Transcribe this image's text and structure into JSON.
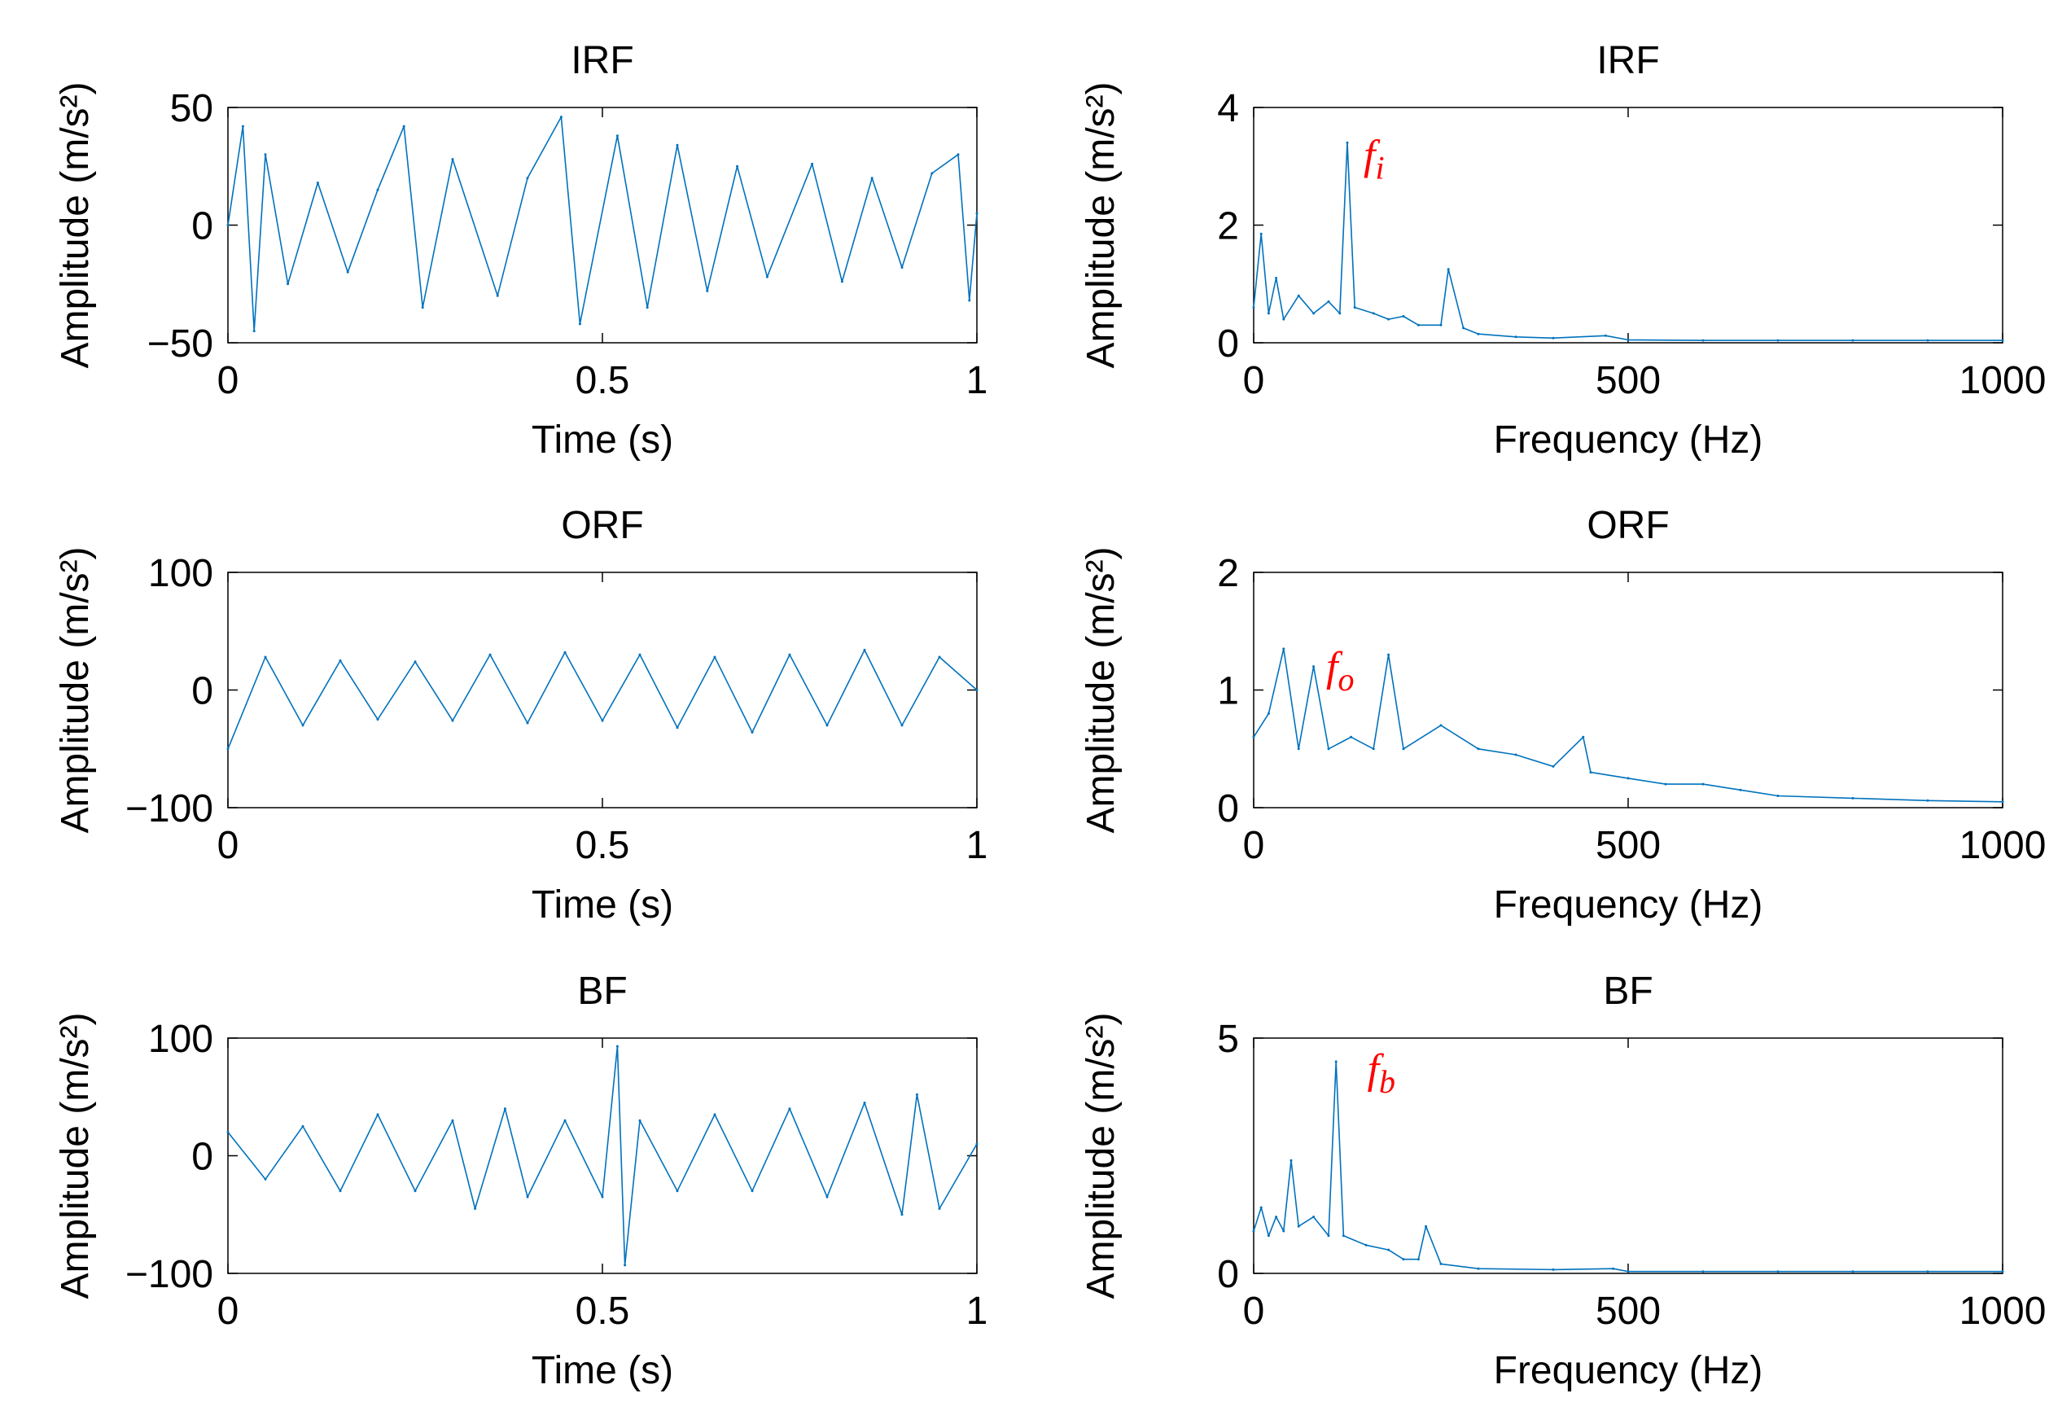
{
  "figure": {
    "colors": {
      "signal": "#0072bd",
      "annotation": "#ff0000",
      "axes": "#000000"
    }
  },
  "chart_data": [
    {
      "type": "line",
      "title": "IRF",
      "xlabel": "Time (s)",
      "ylabel": "Amplitude (m/s²)",
      "xlim": [
        0,
        1
      ],
      "ylim": [
        -50,
        50
      ],
      "xticks": [
        "0",
        "0.5",
        "1"
      ],
      "yticks": [
        "50",
        "0",
        "−50"
      ],
      "xtick_values": [
        0,
        0.5,
        1
      ],
      "ytick_values": [
        50,
        0,
        -50
      ],
      "series": [
        {
          "x": [
            0.0,
            0.02,
            0.035,
            0.05,
            0.08,
            0.12,
            0.16,
            0.2,
            0.235,
            0.26,
            0.3,
            0.36,
            0.4,
            0.445,
            0.47,
            0.52,
            0.56,
            0.6,
            0.64,
            0.68,
            0.72,
            0.78,
            0.82,
            0.86,
            0.9,
            0.94,
            0.975,
            0.99,
            1.0
          ],
          "values": [
            0,
            42,
            -45,
            30,
            -25,
            18,
            -20,
            15,
            42,
            -35,
            28,
            -30,
            20,
            46,
            -42,
            38,
            -35,
            34,
            -28,
            25,
            -22,
            26,
            -24,
            20,
            -18,
            22,
            30,
            -32,
            5
          ]
        }
      ]
    },
    {
      "type": "line",
      "title": "IRF",
      "xlabel": "Frequency (Hz)",
      "ylabel": "Amplitude (m/s²)",
      "xlim": [
        0,
        1000
      ],
      "ylim": [
        0,
        4
      ],
      "xticks": [
        "0",
        "500",
        "1000"
      ],
      "yticks": [
        "4",
        "2",
        "0"
      ],
      "xtick_values": [
        0,
        500,
        1000
      ],
      "ytick_values": [
        4,
        2,
        0
      ],
      "annotations": [
        {
          "text": "f",
          "sub": "i",
          "x": 125,
          "y": 3.4
        }
      ],
      "series": [
        {
          "x": [
            0,
            10,
            20,
            30,
            40,
            60,
            80,
            100,
            115,
            125,
            135,
            160,
            180,
            200,
            220,
            250,
            260,
            280,
            300,
            350,
            400,
            470,
            500,
            600,
            700,
            800,
            900,
            1000
          ],
          "values": [
            0.6,
            1.85,
            0.5,
            1.1,
            0.4,
            0.8,
            0.5,
            0.7,
            0.5,
            3.4,
            0.6,
            0.5,
            0.4,
            0.45,
            0.3,
            0.3,
            1.25,
            0.25,
            0.15,
            0.1,
            0.08,
            0.12,
            0.05,
            0.04,
            0.04,
            0.04,
            0.04,
            0.04
          ]
        }
      ]
    },
    {
      "type": "line",
      "title": "ORF",
      "xlabel": "Time (s)",
      "ylabel": "Amplitude (m/s²)",
      "xlim": [
        0,
        1
      ],
      "ylim": [
        -100,
        100
      ],
      "xticks": [
        "0",
        "0.5",
        "1"
      ],
      "yticks": [
        "100",
        "0",
        "−100"
      ],
      "xtick_values": [
        0,
        0.5,
        1
      ],
      "ytick_values": [
        100,
        0,
        -100
      ],
      "series": [
        {
          "x": [
            0.0,
            0.05,
            0.1,
            0.15,
            0.2,
            0.25,
            0.3,
            0.35,
            0.4,
            0.45,
            0.5,
            0.55,
            0.6,
            0.65,
            0.7,
            0.75,
            0.8,
            0.85,
            0.9,
            0.95,
            1.0
          ],
          "values": [
            -50,
            28,
            -30,
            25,
            -25,
            24,
            -26,
            30,
            -28,
            32,
            -26,
            30,
            -32,
            28,
            -36,
            30,
            -30,
            34,
            -30,
            28,
            0
          ]
        }
      ]
    },
    {
      "type": "line",
      "title": "ORF",
      "xlabel": "Frequency (Hz)",
      "ylabel": "Amplitude (m/s²)",
      "xlim": [
        0,
        1000
      ],
      "ylim": [
        0,
        2
      ],
      "xticks": [
        "0",
        "500",
        "1000"
      ],
      "yticks": [
        "2",
        "1",
        "0"
      ],
      "xtick_values": [
        0,
        500,
        1000
      ],
      "ytick_values": [
        2,
        1,
        0
      ],
      "annotations": [
        {
          "text": "f",
          "sub": "o",
          "x": 75,
          "y": 1.3
        }
      ],
      "series": [
        {
          "x": [
            0,
            20,
            40,
            60,
            80,
            100,
            130,
            160,
            180,
            200,
            250,
            300,
            350,
            400,
            440,
            450,
            500,
            550,
            600,
            650,
            700,
            800,
            900,
            1000
          ],
          "values": [
            0.6,
            0.8,
            1.35,
            0.5,
            1.2,
            0.5,
            0.6,
            0.5,
            1.3,
            0.5,
            0.7,
            0.5,
            0.45,
            0.35,
            0.6,
            0.3,
            0.25,
            0.2,
            0.2,
            0.15,
            0.1,
            0.08,
            0.06,
            0.05
          ]
        }
      ]
    },
    {
      "type": "line",
      "title": "BF",
      "xlabel": "Time (s)",
      "ylabel": "Amplitude (m/s²)",
      "xlim": [
        0,
        1
      ],
      "ylim": [
        -100,
        100
      ],
      "xticks": [
        "0",
        "0.5",
        "1"
      ],
      "yticks": [
        "100",
        "0",
        "−100"
      ],
      "xtick_values": [
        0,
        0.5,
        1
      ],
      "ytick_values": [
        100,
        0,
        -100
      ],
      "series": [
        {
          "x": [
            0.0,
            0.05,
            0.1,
            0.15,
            0.2,
            0.25,
            0.3,
            0.33,
            0.37,
            0.4,
            0.45,
            0.5,
            0.52,
            0.53,
            0.55,
            0.6,
            0.65,
            0.7,
            0.75,
            0.8,
            0.85,
            0.9,
            0.92,
            0.95,
            1.0
          ],
          "values": [
            20,
            -20,
            25,
            -30,
            35,
            -30,
            30,
            -45,
            40,
            -35,
            30,
            -35,
            93,
            -93,
            30,
            -30,
            35,
            -30,
            40,
            -35,
            45,
            -50,
            52,
            -45,
            10
          ]
        }
      ]
    },
    {
      "type": "line",
      "title": "BF",
      "xlabel": "Frequency (Hz)",
      "ylabel": "Amplitude (m/s²)",
      "xlim": [
        0,
        1000
      ],
      "ylim": [
        0,
        5
      ],
      "xticks": [
        "0",
        "500",
        "1000"
      ],
      "yticks": [
        "5",
        "0"
      ],
      "xtick_values": [
        0,
        500,
        1000
      ],
      "ytick_values": [
        5,
        0
      ],
      "annotations": [
        {
          "text": "f",
          "sub": "b",
          "x": 130,
          "y": 4.6
        }
      ],
      "series": [
        {
          "x": [
            0,
            10,
            20,
            30,
            40,
            50,
            60,
            80,
            100,
            110,
            120,
            150,
            180,
            200,
            220,
            230,
            250,
            300,
            400,
            480,
            500,
            600,
            700,
            800,
            900,
            1000
          ],
          "values": [
            0.9,
            1.4,
            0.8,
            1.2,
            0.9,
            2.4,
            1.0,
            1.2,
            0.8,
            4.5,
            0.8,
            0.6,
            0.5,
            0.3,
            0.3,
            1.0,
            0.2,
            0.1,
            0.08,
            0.1,
            0.04,
            0.04,
            0.04,
            0.04,
            0.04,
            0.04
          ]
        }
      ]
    }
  ]
}
